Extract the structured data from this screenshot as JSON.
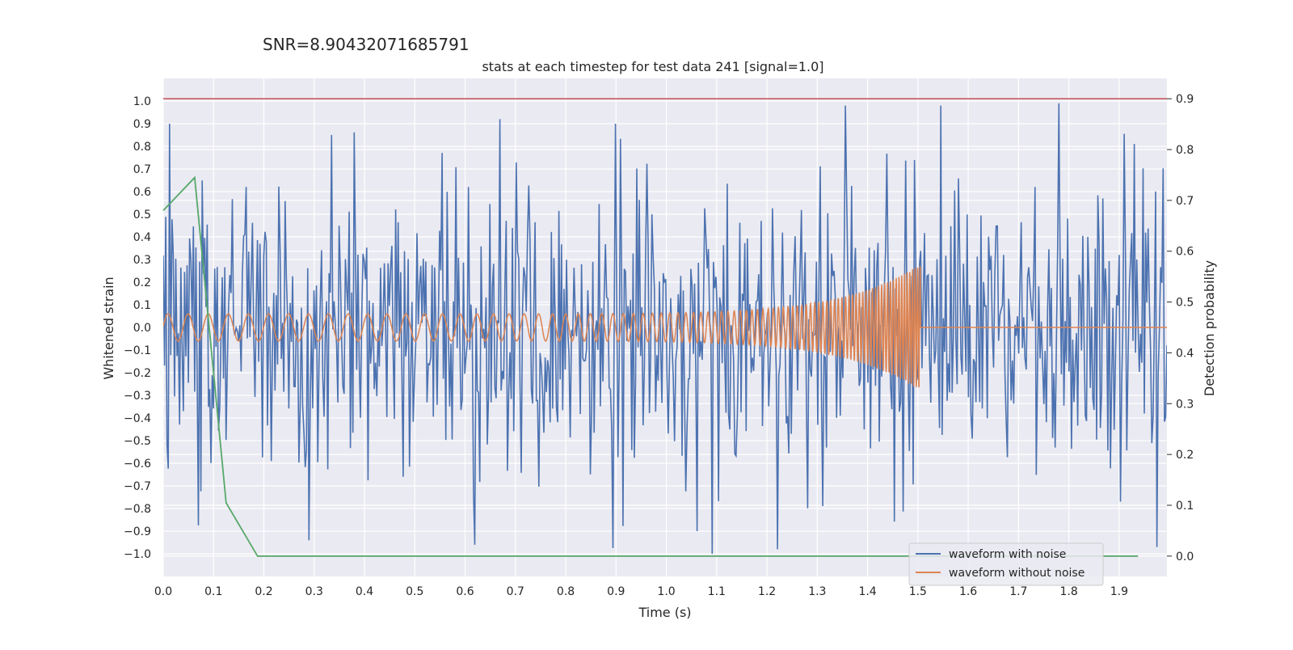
{
  "chart_data": {
    "type": "line",
    "suptitle": "SNR=8.90432071685791",
    "title": "stats at each timestep for test data 241 [signal=1.0]",
    "xlabel": "Time (s)",
    "ylabel": "Whitened strain",
    "y2label": "Detection probability",
    "xlim": [
      0.0,
      1.995
    ],
    "ylim": [
      -1.1,
      1.1
    ],
    "y2lim": [
      -0.04,
      0.94
    ],
    "xticks": [
      "0.0",
      "0.1",
      "0.2",
      "0.3",
      "0.4",
      "0.5",
      "0.6",
      "0.7",
      "0.8",
      "0.9",
      "1.0",
      "1.1",
      "1.2",
      "1.3",
      "1.4",
      "1.5",
      "1.6",
      "1.7",
      "1.8",
      "1.9"
    ],
    "yticks": [
      "1.0",
      "0.9",
      "0.8",
      "0.7",
      "0.6",
      "0.5",
      "0.4",
      "0.3",
      "0.2",
      "0.1",
      "0.0",
      "−0.1",
      "−0.2",
      "−0.3",
      "−0.4",
      "−0.5",
      "−0.6",
      "−0.7",
      "−0.8",
      "−0.9",
      "−1.0"
    ],
    "y2ticks": [
      "0.9",
      "0.8",
      "0.7",
      "0.6",
      "0.5",
      "0.4",
      "0.3",
      "0.2",
      "0.1",
      "0.0"
    ],
    "noisy_series": {
      "name": "waveform with noise",
      "color": "#4c72b0",
      "n_points": 800,
      "approx_std": 0.33,
      "peak_samples": [
        [
          0.012,
          0.9
        ],
        [
          0.335,
          0.85
        ],
        [
          0.67,
          0.92
        ],
        [
          0.9,
          0.9
        ],
        [
          1.78,
          0.99
        ],
        [
          1.09,
          -1.0
        ],
        [
          0.62,
          -0.96
        ],
        [
          0.29,
          -0.94
        ],
        [
          1.06,
          -0.9
        ],
        [
          1.975,
          -0.97
        ]
      ]
    },
    "signal_series": {
      "name": "waveform without noise",
      "color": "#dd8452",
      "amplitude_start": 0.06,
      "amplitude_peak": 0.28,
      "cycles_per_second_start": 25,
      "cycles_per_second_end": 200,
      "merger_time": 1.505
    },
    "detection_probability": {
      "color": "#55a868",
      "x": [
        0.0,
        0.0625,
        0.125,
        0.1875,
        1.9375
      ],
      "values": [
        0.68,
        0.745,
        0.105,
        0.0,
        0.0
      ]
    },
    "threshold_line": {
      "color": "#c44e52",
      "value": 0.9
    },
    "legend": [
      "waveform with noise",
      "waveform without noise"
    ],
    "legend_position": "lower-right"
  }
}
